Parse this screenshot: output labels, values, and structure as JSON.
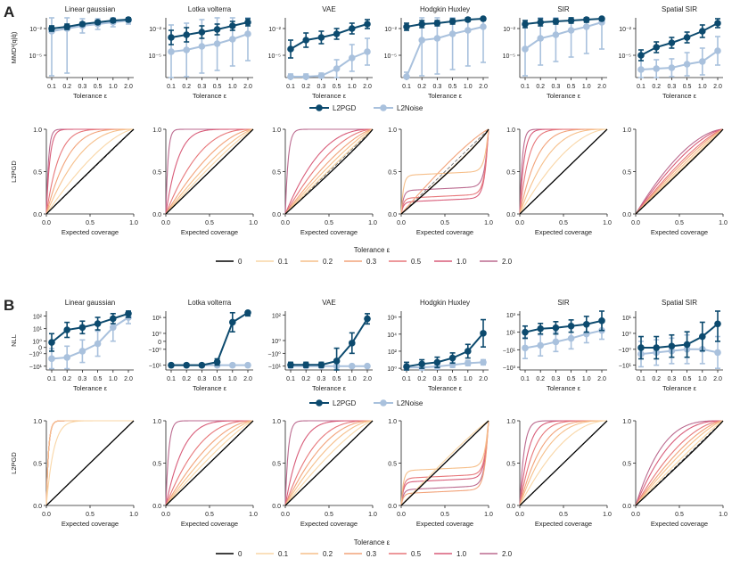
{
  "panels": [
    {
      "letter": "A",
      "metric_ylabel": "MMD²(q|q̂)",
      "coverage_ylabel": "L2PGD",
      "legend_series": [
        "L2PGD",
        "L2Noise"
      ],
      "legend_tolerance_title": "Tolerance ε",
      "tolerances": [
        "0",
        "0.1",
        "0.2",
        "0.3",
        "0.5",
        "1.0",
        "2.0"
      ]
    },
    {
      "letter": "B",
      "metric_ylabel": "NLL",
      "coverage_ylabel": "L2PGD",
      "legend_series": [
        "L2PGD",
        "L2Noise"
      ],
      "legend_tolerance_title": "Tolerance ε",
      "tolerances": [
        "0",
        "0.1",
        "0.2",
        "0.3",
        "0.5",
        "1.0",
        "2.0"
      ]
    }
  ],
  "colors": {
    "L2PGD": "#0c4a6e",
    "L2Noise": "#a9c1dd",
    "tolerance": [
      "#000000",
      "#f9d6a6",
      "#f6bf8a",
      "#f2a37a",
      "#e7777a",
      "#d85c79",
      "#bb6a8f"
    ]
  },
  "chart_data": [
    {
      "panel": "A",
      "type": "line",
      "kind": "metric",
      "titles": [
        "Linear gaussian",
        "Lotka volterra",
        "VAE",
        "Hodgkin Huxley",
        "SIR",
        "Spatial SIR"
      ],
      "x_tick_labels": [
        "0.1",
        "0.2",
        "0.3",
        "0.5",
        "1.0",
        "2.0"
      ],
      "xlabel": "Tolerance ε",
      "ylabel": "MMD²(q|q̂)",
      "y_scale": "log",
      "y_ticks": [
        [
          "10⁻²",
          "10⁻⁵"
        ],
        [
          "10⁻²",
          "10⁻⁵"
        ],
        [
          "10⁻²",
          "10⁻⁵"
        ],
        [
          "10⁻²",
          "10⁻⁵"
        ],
        [
          "10⁻²",
          "10⁻⁵"
        ],
        [
          "10⁻²",
          "10⁻⁵"
        ]
      ],
      "y_tick_values": [
        [
          -2,
          -5
        ],
        [
          -2,
          -5
        ],
        [
          -2,
          -5
        ],
        [
          -2,
          -5
        ],
        [
          -2,
          -5
        ],
        [
          -2,
          -5
        ]
      ],
      "ylim_log10": [
        [
          -7.5,
          -0.8
        ],
        [
          -7.5,
          -0.8
        ],
        [
          -7.5,
          -0.8
        ],
        [
          -7.5,
          -0.8
        ],
        [
          -7.5,
          -0.8
        ],
        [
          -7.5,
          -0.8
        ]
      ],
      "series": [
        {
          "name": "L2PGD",
          "log10_values": [
            [
              -2.0,
              -1.8,
              -1.5,
              -1.3,
              -1.1,
              -1.0
            ],
            [
              -3.0,
              -2.7,
              -2.4,
              -2.1,
              -1.7,
              -1.3
            ],
            [
              -4.3,
              -3.3,
              -3.0,
              -2.6,
              -2.0,
              -1.5
            ],
            [
              -1.8,
              -1.5,
              -1.4,
              -1.2,
              -1.0,
              -0.9
            ],
            [
              -1.5,
              -1.3,
              -1.2,
              -1.1,
              -1.0,
              -0.9
            ],
            [
              -5.0,
              -4.1,
              -3.6,
              -3.0,
              -2.3,
              -1.4
            ]
          ],
          "err_log10": [
            [
              0.3,
              0.3,
              0.2,
              0.2,
              0.2,
              0.2
            ],
            [
              0.8,
              0.8,
              0.7,
              0.6,
              0.5,
              0.4
            ],
            [
              1.0,
              0.8,
              0.7,
              0.6,
              0.6,
              0.5
            ],
            [
              0.4,
              0.4,
              0.3,
              0.3,
              0.2,
              0.2
            ],
            [
              0.4,
              0.4,
              0.3,
              0.3,
              0.3,
              0.2
            ],
            [
              0.6,
              0.6,
              0.6,
              0.6,
              0.7,
              0.5
            ]
          ]
        },
        {
          "name": "L2Noise",
          "log10_values": [
            [
              -2.3,
              -2.0,
              -1.7,
              -1.5,
              -1.3,
              -1.1
            ],
            [
              -4.6,
              -4.4,
              -4.0,
              -3.7,
              -3.2,
              -2.6
            ],
            [
              -7.4,
              -7.4,
              -7.3,
              -6.5,
              -5.3,
              -4.6
            ],
            [
              -7.4,
              -3.3,
              -3.1,
              -2.6,
              -2.2,
              -1.8
            ],
            [
              -4.3,
              -3.1,
              -2.7,
              -2.2,
              -1.8,
              -1.3
            ],
            [
              -6.6,
              -6.5,
              -6.4,
              -6.0,
              -5.7,
              -4.5
            ]
          ],
          "err_log10": [
            [
              5.0,
              5.0,
              0.8,
              0.6,
              0.5,
              0.4
            ],
            [
              3.0,
              3.0,
              3.0,
              3.0,
              3.0,
              3.0
            ],
            [
              0.3,
              0.3,
              0.3,
              1.0,
              1.5,
              1.5
            ],
            [
              0.5,
              4.0,
              4.0,
              4.0,
              4.0,
              4.0
            ],
            [
              3.0,
              3.0,
              3.0,
              3.0,
              3.0,
              3.0
            ],
            [
              1.0,
              1.0,
              1.0,
              1.3,
              1.5,
              1.6
            ]
          ]
        }
      ]
    },
    {
      "panel": "A",
      "type": "line",
      "kind": "coverage",
      "xlabel": "Expected coverage",
      "ylabel": "L2PGD",
      "x_tick_labels": [
        "0.0",
        "0.5",
        "1.0"
      ],
      "y_tick_labels": [
        "0.0",
        "0.5",
        "1.0"
      ],
      "xlim": [
        0,
        1
      ],
      "ylim": [
        0,
        1
      ],
      "tolerances": [
        "0",
        "0.1",
        "0.2",
        "0.3",
        "0.5",
        "1.0",
        "2.0"
      ],
      "curve_params": [
        [
          [
            0,
            1.02
          ],
          [
            1,
            1.5
          ],
          [
            2,
            2.5
          ],
          [
            3,
            4
          ],
          [
            4,
            7
          ],
          [
            5,
            25
          ],
          [
            6,
            40
          ]
        ],
        [
          [
            0,
            1.0
          ],
          [
            1,
            1.15
          ],
          [
            2,
            1.35
          ],
          [
            3,
            1.7
          ],
          [
            4,
            2.6
          ],
          [
            5,
            7
          ],
          [
            6,
            40
          ]
        ],
        [
          [
            0,
            0.93
          ],
          [
            1,
            1.05
          ],
          [
            2,
            1.2
          ],
          [
            3,
            1.4
          ],
          [
            4,
            1.8
          ],
          [
            5,
            2.5
          ],
          [
            6,
            30
          ]
        ],
        [
          [
            0,
            0.88
          ],
          [
            1,
            0.9
          ],
          [
            2,
            -0.9
          ],
          [
            3,
            1.2
          ],
          [
            4,
            -0.3
          ],
          [
            5,
            -0.2
          ],
          [
            6,
            -0.5
          ]
        ],
        [
          [
            0,
            1.0
          ],
          [
            1,
            1.8
          ],
          [
            2,
            3
          ],
          [
            3,
            5
          ],
          [
            4,
            10
          ],
          [
            5,
            20
          ],
          [
            6,
            35
          ]
        ],
        [
          [
            0,
            0.97
          ],
          [
            1,
            1.02
          ],
          [
            2,
            1.1
          ],
          [
            3,
            1.2
          ],
          [
            4,
            1.3
          ],
          [
            5,
            1.5
          ],
          [
            6,
            1.7
          ]
        ]
      ]
    },
    {
      "panel": "B",
      "type": "line",
      "kind": "metric",
      "titles": [
        "Linear gaussian",
        "Lotka volterra",
        "VAE",
        "Hodgkin Huxley",
        "SIR",
        "Spatial SIR"
      ],
      "x_tick_labels": [
        "0.1",
        "0.2",
        "0.3",
        "0.5",
        "1.0",
        "2.0"
      ],
      "xlabel": "Tolerance ε",
      "ylabel": "NLL",
      "y_scale": "symlog",
      "y_ticks": [
        [
          "10²",
          "10¹",
          "10⁰",
          "0",
          "−10⁰",
          "−10¹"
        ],
        [
          "10¹",
          "10⁰",
          "0",
          "−10⁰",
          "−10¹"
        ],
        [
          "10²",
          "10⁰",
          "−10⁰",
          "−10¹"
        ],
        [
          "10⁶",
          "10⁴",
          "10²",
          "10⁰"
        ],
        [
          "10³",
          "10¹",
          "−10¹",
          "−10³"
        ],
        [
          "10¹",
          "10⁰",
          "−10⁰",
          "−10¹"
        ]
      ],
      "y_tick_values": [
        [
          2,
          1,
          0,
          -0.5,
          -1,
          -2
        ],
        [
          1,
          0,
          -0.5,
          -1,
          -2
        ],
        [
          2,
          0,
          -1,
          -2
        ],
        [
          6,
          4,
          2,
          0
        ],
        [
          3,
          1,
          -1,
          -3
        ],
        [
          1,
          0,
          -1,
          -2
        ]
      ],
      "ylim_symlog": [
        [
          -2.3,
          2.4
        ],
        [
          -2.3,
          1.4
        ],
        [
          -2.3,
          2.3
        ],
        [
          -0.2,
          6.7
        ],
        [
          -3.3,
          3.4
        ],
        [
          -2.3,
          1.4
        ]
      ],
      "series": [
        {
          "name": "L2PGD",
          "symlog_values": [
            [
              -0.1,
              0.9,
              1.1,
              1.4,
              1.8,
              2.2
            ],
            [
              -2.0,
              -2.0,
              -2.0,
              -1.8,
              0.7,
              1.3
            ],
            [
              -1.9,
              -1.9,
              -1.9,
              -1.6,
              -0.2,
              1.7
            ],
            [
              0.2,
              0.5,
              0.7,
              1.2,
              2.0,
              4.1
            ],
            [
              1.0,
              1.4,
              1.5,
              1.7,
              1.9,
              2.3
            ],
            [
              -0.9,
              -0.9,
              -0.8,
              -0.7,
              -0.2,
              0.6
            ]
          ],
          "err_symlog": [
            [
              0.7,
              0.6,
              0.5,
              0.5,
              0.4,
              0.3
            ],
            [
              0.1,
              0.1,
              0.1,
              0.2,
              0.6,
              0.2
            ],
            [
              0.2,
              0.2,
              0.2,
              1.0,
              0.8,
              0.4
            ],
            [
              0.5,
              0.5,
              0.6,
              0.6,
              0.8,
              1.6
            ],
            [
              0.7,
              0.6,
              0.7,
              0.7,
              0.9,
              1.1
            ],
            [
              0.7,
              0.7,
              0.7,
              0.8,
              0.9,
              1.1
            ]
          ]
        },
        {
          "name": "L2Noise",
          "symlog_values": [
            [
              -1.4,
              -1.3,
              -0.8,
              -0.2,
              1.1,
              1.9
            ],
            [
              -2.0,
              -2.0,
              -2.0,
              -2.0,
              -2.0,
              -2.0
            ],
            [
              -2.0,
              -2.0,
              -2.0,
              -2.0,
              -2.0,
              -2.0
            ],
            [
              0.1,
              0.1,
              0.2,
              0.4,
              0.6,
              0.7
            ],
            [
              -0.8,
              -0.5,
              -0.1,
              0.3,
              0.8,
              1.2
            ],
            [
              -1.3,
              -1.2,
              -1.1,
              -1.0,
              -1.0,
              -1.2
            ]
          ],
          "err_symlog": [
            [
              0.8,
              0.9,
              0.9,
              1.0,
              1.1,
              0.5
            ],
            [
              0.1,
              0.1,
              0.1,
              0.1,
              0.1,
              0.1
            ],
            [
              0.1,
              0.1,
              0.1,
              0.1,
              0.1,
              0.1
            ],
            [
              0.3,
              0.3,
              0.3,
              0.3,
              0.3,
              0.3
            ],
            [
              1.2,
              1.2,
              1.1,
              1.2,
              1.0,
              1.0
            ],
            [
              0.8,
              0.8,
              0.8,
              0.9,
              0.9,
              1.0
            ]
          ]
        }
      ]
    },
    {
      "panel": "B",
      "type": "line",
      "kind": "coverage",
      "xlabel": "Expected coverage",
      "ylabel": "L2PGD",
      "x_tick_labels": [
        "0.0",
        "0.5",
        "1.0"
      ],
      "y_tick_labels": [
        "0.0",
        "0.5",
        "1.0"
      ],
      "xlim": [
        0,
        1
      ],
      "ylim": [
        0,
        1
      ],
      "tolerances": [
        "0",
        "0.1",
        "0.2",
        "0.3",
        "0.5",
        "1.0",
        "2.0"
      ],
      "curve_params": [
        [
          [
            0,
            1.0
          ],
          [
            1,
            12
          ],
          [
            2,
            40
          ],
          [
            3,
            40
          ],
          [
            4,
            40
          ],
          [
            5,
            40
          ],
          [
            6,
            40
          ]
        ],
        [
          [
            0,
            1.0
          ],
          [
            1,
            1.2
          ],
          [
            2,
            1.45
          ],
          [
            3,
            1.8
          ],
          [
            4,
            2.6
          ],
          [
            5,
            5
          ],
          [
            6,
            30
          ]
        ],
        [
          [
            0,
            1.0
          ],
          [
            1,
            1.3
          ],
          [
            2,
            1.7
          ],
          [
            3,
            2.2
          ],
          [
            4,
            3
          ],
          [
            5,
            6
          ],
          [
            6,
            30
          ]
        ],
        [
          [
            0,
            1.0
          ],
          [
            1,
            1.1
          ],
          [
            2,
            -0.8
          ],
          [
            3,
            -0.2
          ],
          [
            4,
            -0.6
          ],
          [
            5,
            -0.5
          ],
          [
            6,
            -0.3
          ]
        ],
        [
          [
            0,
            1.0
          ],
          [
            1,
            2
          ],
          [
            2,
            3
          ],
          [
            3,
            4
          ],
          [
            4,
            6
          ],
          [
            5,
            10
          ],
          [
            6,
            20
          ]
        ],
        [
          [
            0,
            0.96
          ],
          [
            1,
            1.1
          ],
          [
            2,
            1.3
          ],
          [
            3,
            1.5
          ],
          [
            4,
            1.8
          ],
          [
            5,
            2.5
          ],
          [
            6,
            3.3
          ]
        ]
      ]
    }
  ]
}
